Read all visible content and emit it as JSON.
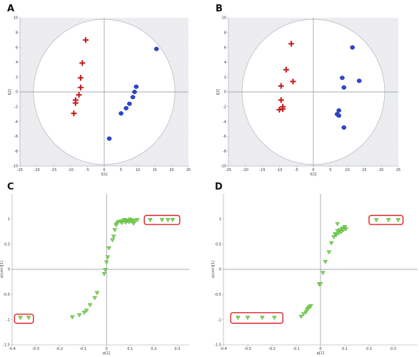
{
  "colors": {
    "red_marker": "#c81e1e",
    "blue_marker": "#2d46d2",
    "green_marker": "#7ed957",
    "green_edge": "#4aa02c",
    "highlight_box": "#e0202a",
    "plot_bg_hatch": "#e9eaee",
    "circle_fill": "#ffffff"
  },
  "chart_data": [
    {
      "panel_label": "A",
      "type": "scatter",
      "xlabel": "t[1]",
      "ylabel": "t[2]",
      "xlim": [
        -25,
        25
      ],
      "ylim": [
        -10,
        10
      ],
      "xticks": [
        -25,
        -20,
        -15,
        -10,
        -5,
        0,
        5,
        10,
        15,
        20,
        25
      ],
      "yticks": [
        10,
        8,
        6,
        4,
        2,
        0,
        -2,
        -4,
        -6,
        -8,
        -10
      ],
      "hotelling_ellipse": true,
      "series": [
        {
          "marker": "cross",
          "color": "#c81e1e",
          "points": [
            [
              -5.5,
              7.0
            ],
            [
              -6.5,
              3.9
            ],
            [
              -7.0,
              1.9
            ],
            [
              -7.0,
              0.6
            ],
            [
              -7.5,
              -0.4
            ],
            [
              -8.5,
              -1.1
            ],
            [
              -8.5,
              -1.5
            ],
            [
              -9.0,
              -2.9
            ]
          ]
        },
        {
          "marker": "circle",
          "color": "#2d46d2",
          "points": [
            [
              15.5,
              5.8
            ],
            [
              9.5,
              0.7
            ],
            [
              9.0,
              0.0
            ],
            [
              8.5,
              -0.7
            ],
            [
              7.5,
              -1.6
            ],
            [
              6.5,
              -2.2
            ],
            [
              5.0,
              -2.9
            ],
            [
              1.5,
              -6.3
            ]
          ]
        }
      ]
    },
    {
      "panel_label": "B",
      "type": "scatter",
      "xlabel": "t[1]",
      "ylabel": "t[2]",
      "xlim": [
        -25,
        25
      ],
      "ylim": [
        -10,
        10
      ],
      "xticks": [
        -25,
        -20,
        -15,
        -10,
        -5,
        0,
        5,
        10,
        15,
        20,
        25
      ],
      "yticks": [
        10,
        8,
        6,
        4,
        2,
        0,
        -2,
        -4,
        -6,
        -8,
        -10
      ],
      "hotelling_ellipse": true,
      "series": [
        {
          "marker": "cross",
          "color": "#c81e1e",
          "points": [
            [
              -6.5,
              6.5
            ],
            [
              -8.0,
              3.0
            ],
            [
              -6.0,
              1.4
            ],
            [
              -9.5,
              0.8
            ],
            [
              -9.5,
              -1.1
            ],
            [
              -9.0,
              -2.0
            ],
            [
              -9.0,
              -2.3
            ],
            [
              -10.0,
              -2.4
            ]
          ]
        },
        {
          "marker": "circle",
          "color": "#2d46d2",
          "points": [
            [
              11.5,
              6.0
            ],
            [
              13.5,
              1.5
            ],
            [
              8.5,
              1.9
            ],
            [
              9.0,
              0.6
            ],
            [
              7.5,
              -2.5
            ],
            [
              7.0,
              -3.0
            ],
            [
              7.5,
              -3.2
            ],
            [
              9.0,
              -4.8
            ]
          ]
        }
      ]
    },
    {
      "panel_label": "C",
      "type": "scatter",
      "xlabel": "p[1]",
      "ylabel": "p(corr)[1]",
      "xlim": [
        -0.4,
        0.35
      ],
      "ylim": [
        -1.5,
        1.5
      ],
      "xticks": [
        -0.4,
        -0.3,
        -0.2,
        -0.1,
        0,
        0.1,
        0.2,
        0.3
      ],
      "yticks": [
        1,
        0.5,
        0,
        -0.5,
        -1,
        -1.5
      ],
      "series": [
        {
          "marker": "triangle-down",
          "color": "#7ed957",
          "points": [
            [
              -0.365,
              -0.96
            ],
            [
              -0.33,
              -0.96
            ],
            [
              -0.145,
              -0.95
            ],
            [
              -0.115,
              -0.91
            ],
            [
              -0.095,
              -0.86
            ],
            [
              -0.085,
              -0.82
            ],
            [
              -0.07,
              -0.71
            ],
            [
              -0.05,
              -0.57
            ],
            [
              -0.04,
              -0.47
            ],
            [
              -0.01,
              -0.09
            ],
            [
              -0.005,
              -0.01
            ],
            [
              0.0,
              0.14
            ],
            [
              0.005,
              0.24
            ],
            [
              0.01,
              0.42
            ],
            [
              0.025,
              0.58
            ],
            [
              0.03,
              0.65
            ],
            [
              0.035,
              0.78
            ],
            [
              0.04,
              0.88
            ],
            [
              0.045,
              0.91
            ],
            [
              0.05,
              0.94
            ],
            [
              0.06,
              0.95
            ],
            [
              0.065,
              0.92
            ],
            [
              0.07,
              0.96
            ],
            [
              0.075,
              0.98
            ],
            [
              0.08,
              0.93
            ],
            [
              0.085,
              0.96
            ],
            [
              0.09,
              0.97
            ],
            [
              0.095,
              0.94
            ],
            [
              0.1,
              0.99
            ],
            [
              0.105,
              0.95
            ],
            [
              0.11,
              0.97
            ],
            [
              0.115,
              0.91
            ],
            [
              0.12,
              0.96
            ],
            [
              0.13,
              0.98
            ],
            [
              0.185,
              0.98
            ],
            [
              0.235,
              0.98
            ],
            [
              0.26,
              0.98
            ],
            [
              0.28,
              0.98
            ]
          ]
        }
      ],
      "highlight_boxes": [
        {
          "x": [
            -0.39,
            -0.31
          ],
          "y": [
            -1.07,
            -0.89
          ]
        },
        {
          "x": [
            0.16,
            0.31
          ],
          "y": [
            0.89,
            1.07
          ]
        }
      ]
    },
    {
      "panel_label": "D",
      "type": "scatter",
      "xlabel": "p[1]",
      "ylabel": "p(corr)[1]",
      "xlim": [
        -0.4,
        0.4
      ],
      "ylim": [
        -1.5,
        1.5
      ],
      "xticks": [
        -0.4,
        -0.3,
        -0.2,
        -0.1,
        0,
        0.1,
        0.2,
        0.3
      ],
      "yticks": [
        1,
        0.5,
        0,
        -0.5,
        -1,
        -1.5
      ],
      "series": [
        {
          "marker": "triangle-down",
          "color": "#7ed957",
          "points": [
            [
              -0.34,
              -0.96
            ],
            [
              -0.3,
              -0.96
            ],
            [
              -0.24,
              -0.96
            ],
            [
              -0.19,
              -0.96
            ],
            [
              -0.08,
              -0.94
            ],
            [
              -0.07,
              -0.89
            ],
            [
              -0.06,
              -0.85
            ],
            [
              -0.055,
              -0.8
            ],
            [
              -0.05,
              -0.77
            ],
            [
              -0.045,
              -0.75
            ],
            [
              -0.04,
              -0.73
            ],
            [
              -0.005,
              -0.3
            ],
            [
              0.0,
              -0.29
            ],
            [
              0.01,
              -0.07
            ],
            [
              0.02,
              0.15
            ],
            [
              0.035,
              0.34
            ],
            [
              0.045,
              0.52
            ],
            [
              0.055,
              0.64
            ],
            [
              0.06,
              0.7
            ],
            [
              0.065,
              0.68
            ],
            [
              0.07,
              0.76
            ],
            [
              0.075,
              0.72
            ],
            [
              0.08,
              0.78
            ],
            [
              0.085,
              0.74
            ],
            [
              0.09,
              0.81
            ],
            [
              0.095,
              0.78
            ],
            [
              0.1,
              0.84
            ],
            [
              0.105,
              0.8
            ],
            [
              0.07,
              0.9
            ],
            [
              0.23,
              0.98
            ],
            [
              0.28,
              0.98
            ],
            [
              0.32,
              0.98
            ]
          ]
        }
      ],
      "highlight_boxes": [
        {
          "x": [
            -0.37,
            -0.155
          ],
          "y": [
            -1.07,
            -0.86
          ]
        },
        {
          "x": [
            0.2,
            0.34
          ],
          "y": [
            0.89,
            1.07
          ]
        }
      ]
    }
  ]
}
